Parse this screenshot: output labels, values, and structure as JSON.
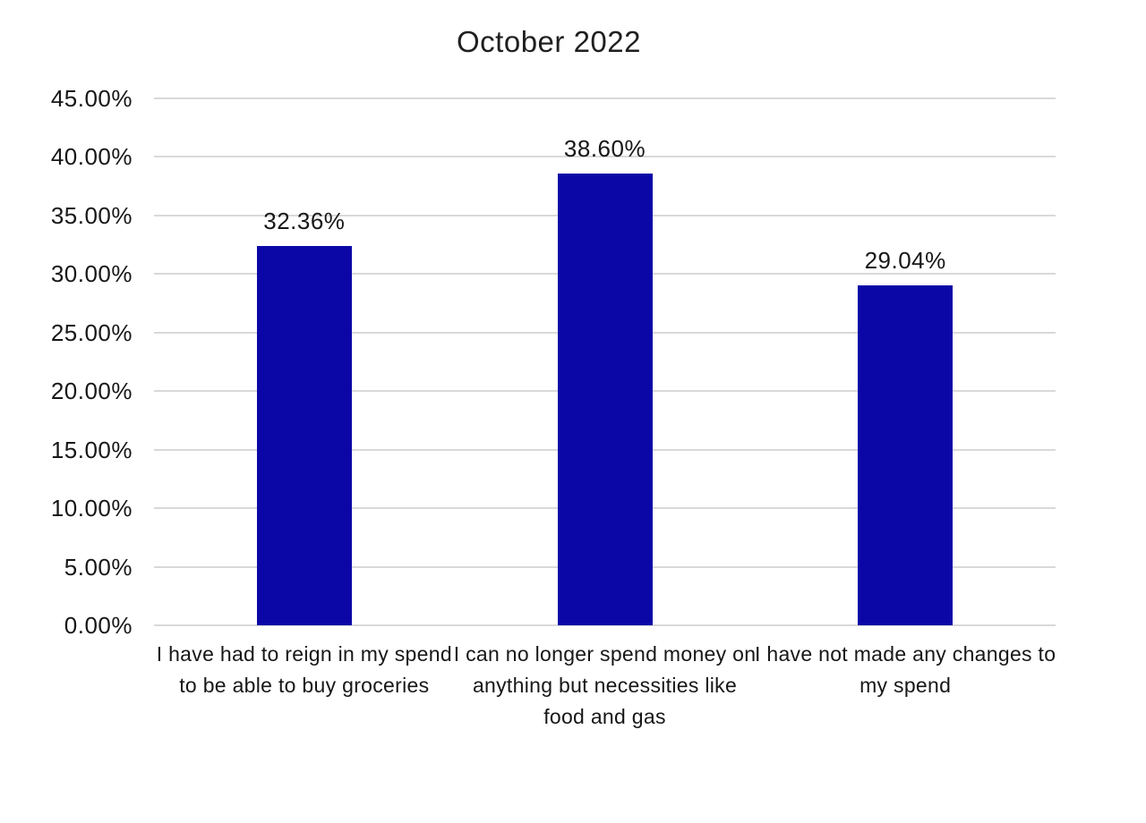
{
  "page": {
    "background_color": "#FFFFFF"
  },
  "chart_data": {
    "type": "bar",
    "title": "October 2022",
    "categories": [
      "I have had to reign in my spend to be able to buy groceries",
      "I can no longer spend money on anything but necessities like food and gas",
      "I have not made any changes to my spend"
    ],
    "values": [
      32.36,
      38.6,
      29.04
    ],
    "value_labels": [
      "32.36%",
      "38.60%",
      "29.04%"
    ],
    "xlabel": "",
    "ylabel": "",
    "ylim": [
      0,
      45
    ],
    "y_ticks": [
      {
        "value": 45,
        "label": "45.00%"
      },
      {
        "value": 40,
        "label": "40.00%"
      },
      {
        "value": 35,
        "label": "35.00%"
      },
      {
        "value": 30,
        "label": "30.00%"
      },
      {
        "value": 25,
        "label": "25.00%"
      },
      {
        "value": 20,
        "label": "20.00%"
      },
      {
        "value": 15,
        "label": "15.00%"
      },
      {
        "value": 10,
        "label": "10.00%"
      },
      {
        "value": 5,
        "label": "5.00%"
      },
      {
        "value": 0,
        "label": "0.00%"
      }
    ],
    "grid": "horizontal",
    "legend": "none",
    "colors": {
      "bar": "#0B07A7",
      "gridline": "#D9D9D9",
      "text": "#171717"
    }
  }
}
